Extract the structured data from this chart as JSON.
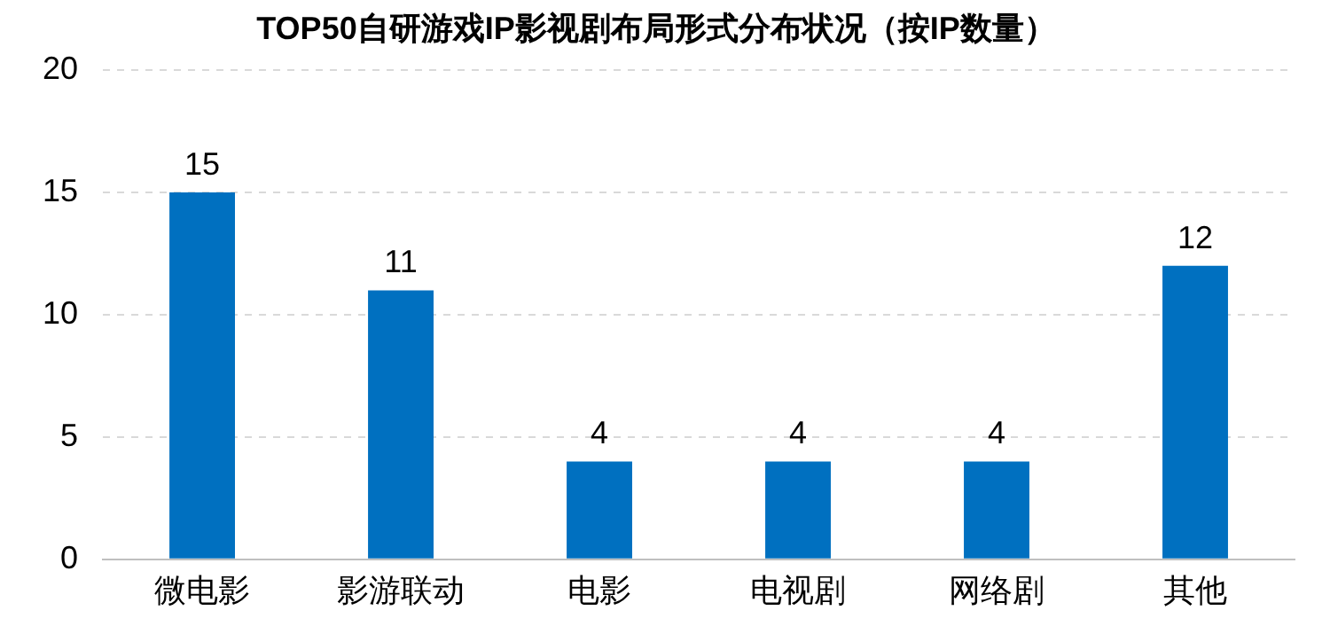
{
  "chart_data": {
    "type": "bar",
    "title": "TOP50自研游戏IP影视剧布局形式分布状况（按IP数量）",
    "categories": [
      "微电影",
      "影游联动",
      "电影",
      "电视剧",
      "网络剧",
      "其他"
    ],
    "values": [
      15,
      11,
      4,
      4,
      4,
      12
    ],
    "color": "#0070c0",
    "ylim": [
      0,
      20
    ],
    "yticks": [
      0,
      5,
      10,
      15,
      20
    ],
    "grid": "y",
    "data_labels": true
  }
}
